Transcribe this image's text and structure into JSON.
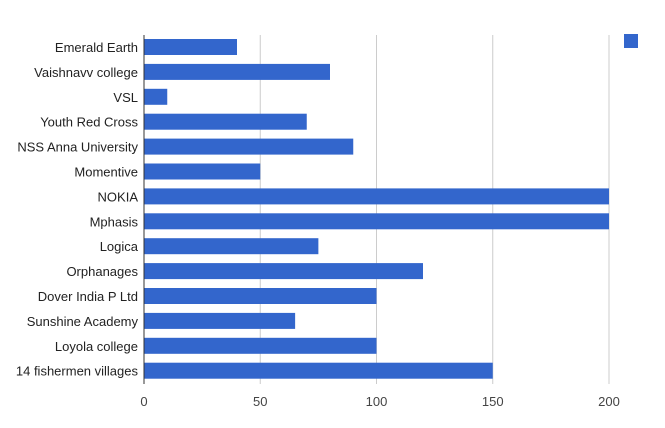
{
  "chart_data": {
    "type": "bar",
    "orientation": "horizontal",
    "title": "",
    "xlabel": "",
    "ylabel": "",
    "xlim": [
      0,
      210
    ],
    "x_ticks": [
      0,
      50,
      100,
      150,
      200
    ],
    "grid": true,
    "legend": "top-right",
    "bar_color": "#3366cc",
    "categories": [
      "Emerald Earth",
      "Vaishnavv college",
      "VSL",
      "Youth Red Cross",
      "NSS Anna University",
      "Momentive",
      "NOKIA",
      "Mphasis",
      "Logica",
      "Orphanages",
      "Dover India P Ltd",
      "Sunshine Academy",
      "Loyola college",
      "14 fishermen villages"
    ],
    "values": [
      40,
      80,
      10,
      70,
      90,
      50,
      200,
      200,
      75,
      120,
      100,
      65,
      100,
      150
    ]
  }
}
